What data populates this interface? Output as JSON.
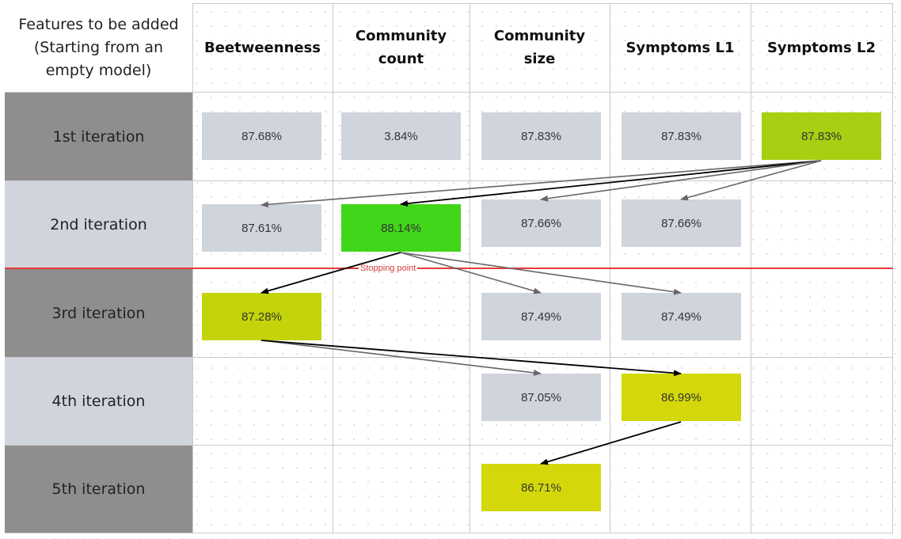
{
  "corner_header": "Features to be added\n(Starting from an\nempty model)",
  "columns": [
    {
      "label": "Beetweenness"
    },
    {
      "label": "Community\ncount"
    },
    {
      "label": "Community\nsize"
    },
    {
      "label": "Symptoms L1"
    },
    {
      "label": "Symptoms L2"
    }
  ],
  "rows": [
    {
      "label": "1st iteration"
    },
    {
      "label": "2nd iteration"
    },
    {
      "label": "3rd iteration"
    },
    {
      "label": "4th iteration"
    },
    {
      "label": "5th iteration"
    }
  ],
  "cells": {
    "r1": {
      "beetweenness": "87.68%",
      "community_count": "3.84%",
      "community_size": "87.83%",
      "symptoms_l1": "87.83%",
      "symptoms_l2": "87.83%"
    },
    "r2": {
      "beetweenness": "87.61%",
      "community_count": "88.14%",
      "community_size": "87.66%",
      "symptoms_l1": "87.66%"
    },
    "r3": {
      "beetweenness": "87.28%",
      "community_size": "87.49%",
      "symptoms_l1": "87.49%"
    },
    "r4": {
      "community_size": "87.05%",
      "symptoms_l1": "86.99%"
    },
    "r5": {
      "community_size": "86.71%"
    }
  },
  "stopping_point_label": "Stopping point",
  "colors": {
    "cell_default": "#d0d4dc",
    "selected_lime": "#a8cf12",
    "selected_green": "#41d61a",
    "selected_olive": "#c3d40a",
    "selected_yellow": "#d4d80a",
    "row_header_dark": "#8e8e8e",
    "row_header_light": "#d0d4dc",
    "stopping_line": "#e83a3a",
    "arrow_selected": "#000000",
    "arrow_other": "#666666"
  }
}
